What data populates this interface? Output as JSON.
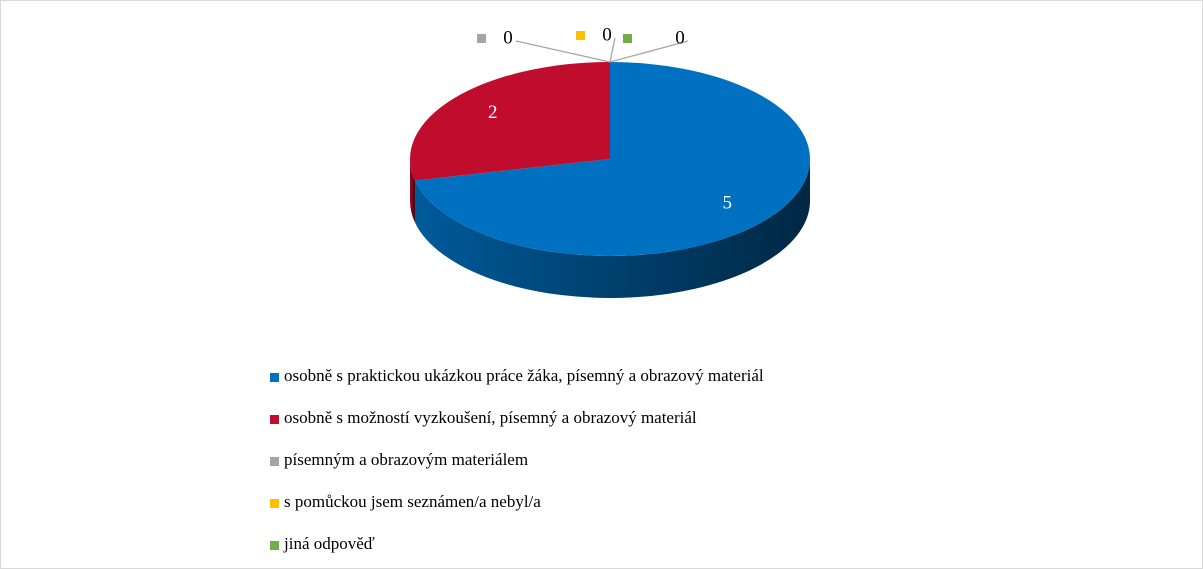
{
  "chart_data": {
    "type": "pie3d",
    "categories": [
      "osobně s praktickou ukázkou práce žáka, písemný a obrazový materiál",
      "osobně s možností vyzkoušení, písemný a obrazový materiál",
      "písemným a obrazovým materiálem",
      "s pomůckou jsem seznámen/a nebyl/a",
      "jiná odpověď"
    ],
    "values": [
      5,
      2,
      0,
      0,
      0
    ],
    "colors": [
      "#0070c0",
      "#c00d2e",
      "#a5a5a5",
      "#ffc000",
      "#70ad47"
    ],
    "legend": "bottom"
  }
}
